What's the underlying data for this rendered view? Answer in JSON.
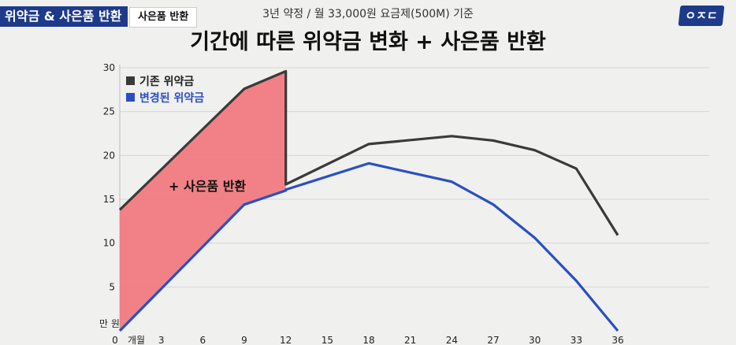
{
  "header": {
    "tag_main": "위약금 & 사은품 반환",
    "tag_sub": "사은품 반환",
    "subtitle": "3년 약정 / 월 33,000원 요금제(500M) 기준",
    "title": "기간에 따른 위약금 변화 + 사은품 반환",
    "logo": "ㅇㅈㄷ"
  },
  "chart_data": {
    "type": "line",
    "title": "기간에 따른 위약금 변화 + 사은품 반환",
    "subtitle": "3년 약정 / 월 33,000원 요금제(500M) 기준",
    "xlabel": "개월",
    "ylabel": "만 원",
    "x_ticks": [
      0,
      3,
      6,
      9,
      12,
      15,
      18,
      21,
      24,
      27,
      30,
      33,
      36
    ],
    "x_tick_labels": [
      "0",
      "3",
      "6",
      "9",
      "12",
      "15",
      "18",
      "21",
      "24",
      "27",
      "30",
      "33",
      "36"
    ],
    "y_ticks": [
      5,
      10,
      15,
      20,
      25,
      30
    ],
    "y_tick_labels": [
      "5",
      "10",
      "15",
      "20",
      "25",
      "30"
    ],
    "xlim": [
      0,
      36
    ],
    "ylim": [
      0,
      30
    ],
    "grid": "horizontal",
    "legend": "top-left",
    "series": [
      {
        "name": "기존 위약금",
        "color": "#3a3a3a",
        "points": [
          [
            0,
            13.8
          ],
          [
            9,
            27.6
          ],
          [
            12,
            29.6
          ],
          [
            12,
            16.7
          ],
          [
            18,
            21.3
          ],
          [
            24,
            22.2
          ],
          [
            27,
            21.7
          ],
          [
            30,
            20.6
          ],
          [
            33,
            18.5
          ],
          [
            36,
            10.9
          ]
        ]
      },
      {
        "name": "변경된 위약금",
        "color": "#2a4fc4",
        "points": [
          [
            0,
            0
          ],
          [
            9,
            14.4
          ],
          [
            12,
            16.0
          ],
          [
            12,
            16.1
          ],
          [
            18,
            19.1
          ],
          [
            24,
            17.0
          ],
          [
            27,
            14.4
          ],
          [
            30,
            10.6
          ],
          [
            33,
            5.7
          ],
          [
            36,
            0
          ]
        ]
      }
    ],
    "shaded_region": {
      "label": "+ 사은품 반환",
      "color": "#f07a80",
      "x_range": [
        0,
        12
      ]
    }
  }
}
